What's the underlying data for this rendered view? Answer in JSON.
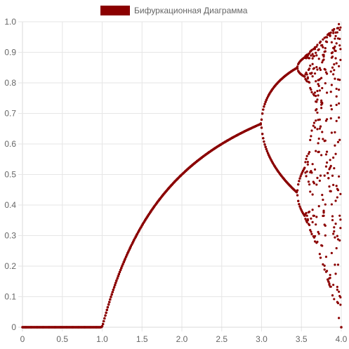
{
  "chart_data": {
    "type": "scatter",
    "title": "",
    "xlabel": "",
    "ylabel": "",
    "xlim": [
      0,
      4
    ],
    "ylim": [
      0,
      1
    ],
    "grid": true,
    "legend_position": "top-center",
    "x_ticks": [
      0,
      0.5,
      1.0,
      1.5,
      2.0,
      2.5,
      3.0,
      3.5,
      4.0
    ],
    "x_tick_labels": [
      "0",
      "0.5",
      "1.0",
      "1.5",
      "2.0",
      "2.5",
      "3.0",
      "3.5",
      "4.0"
    ],
    "y_ticks": [
      0,
      0.1,
      0.2,
      0.3,
      0.4,
      0.5,
      0.6,
      0.7,
      0.8,
      0.9,
      1.0
    ],
    "y_tick_labels": [
      "0",
      "0.1",
      "0.2",
      "0.3",
      "0.4",
      "0.5",
      "0.6",
      "0.7",
      "0.8",
      "0.9",
      "1.0"
    ],
    "series": [
      {
        "name": "Бифуркационная Диаграмма",
        "color": "#8b0000",
        "generation": {
          "function": "logistic map x(n+1) = r*x(n)*(1-x(n))",
          "r_min": 0,
          "r_max": 4,
          "r_step": 0.01,
          "x0": 0.5,
          "transient_iterations": 300,
          "plotted_iterations_per_r": 8
        }
      }
    ]
  }
}
